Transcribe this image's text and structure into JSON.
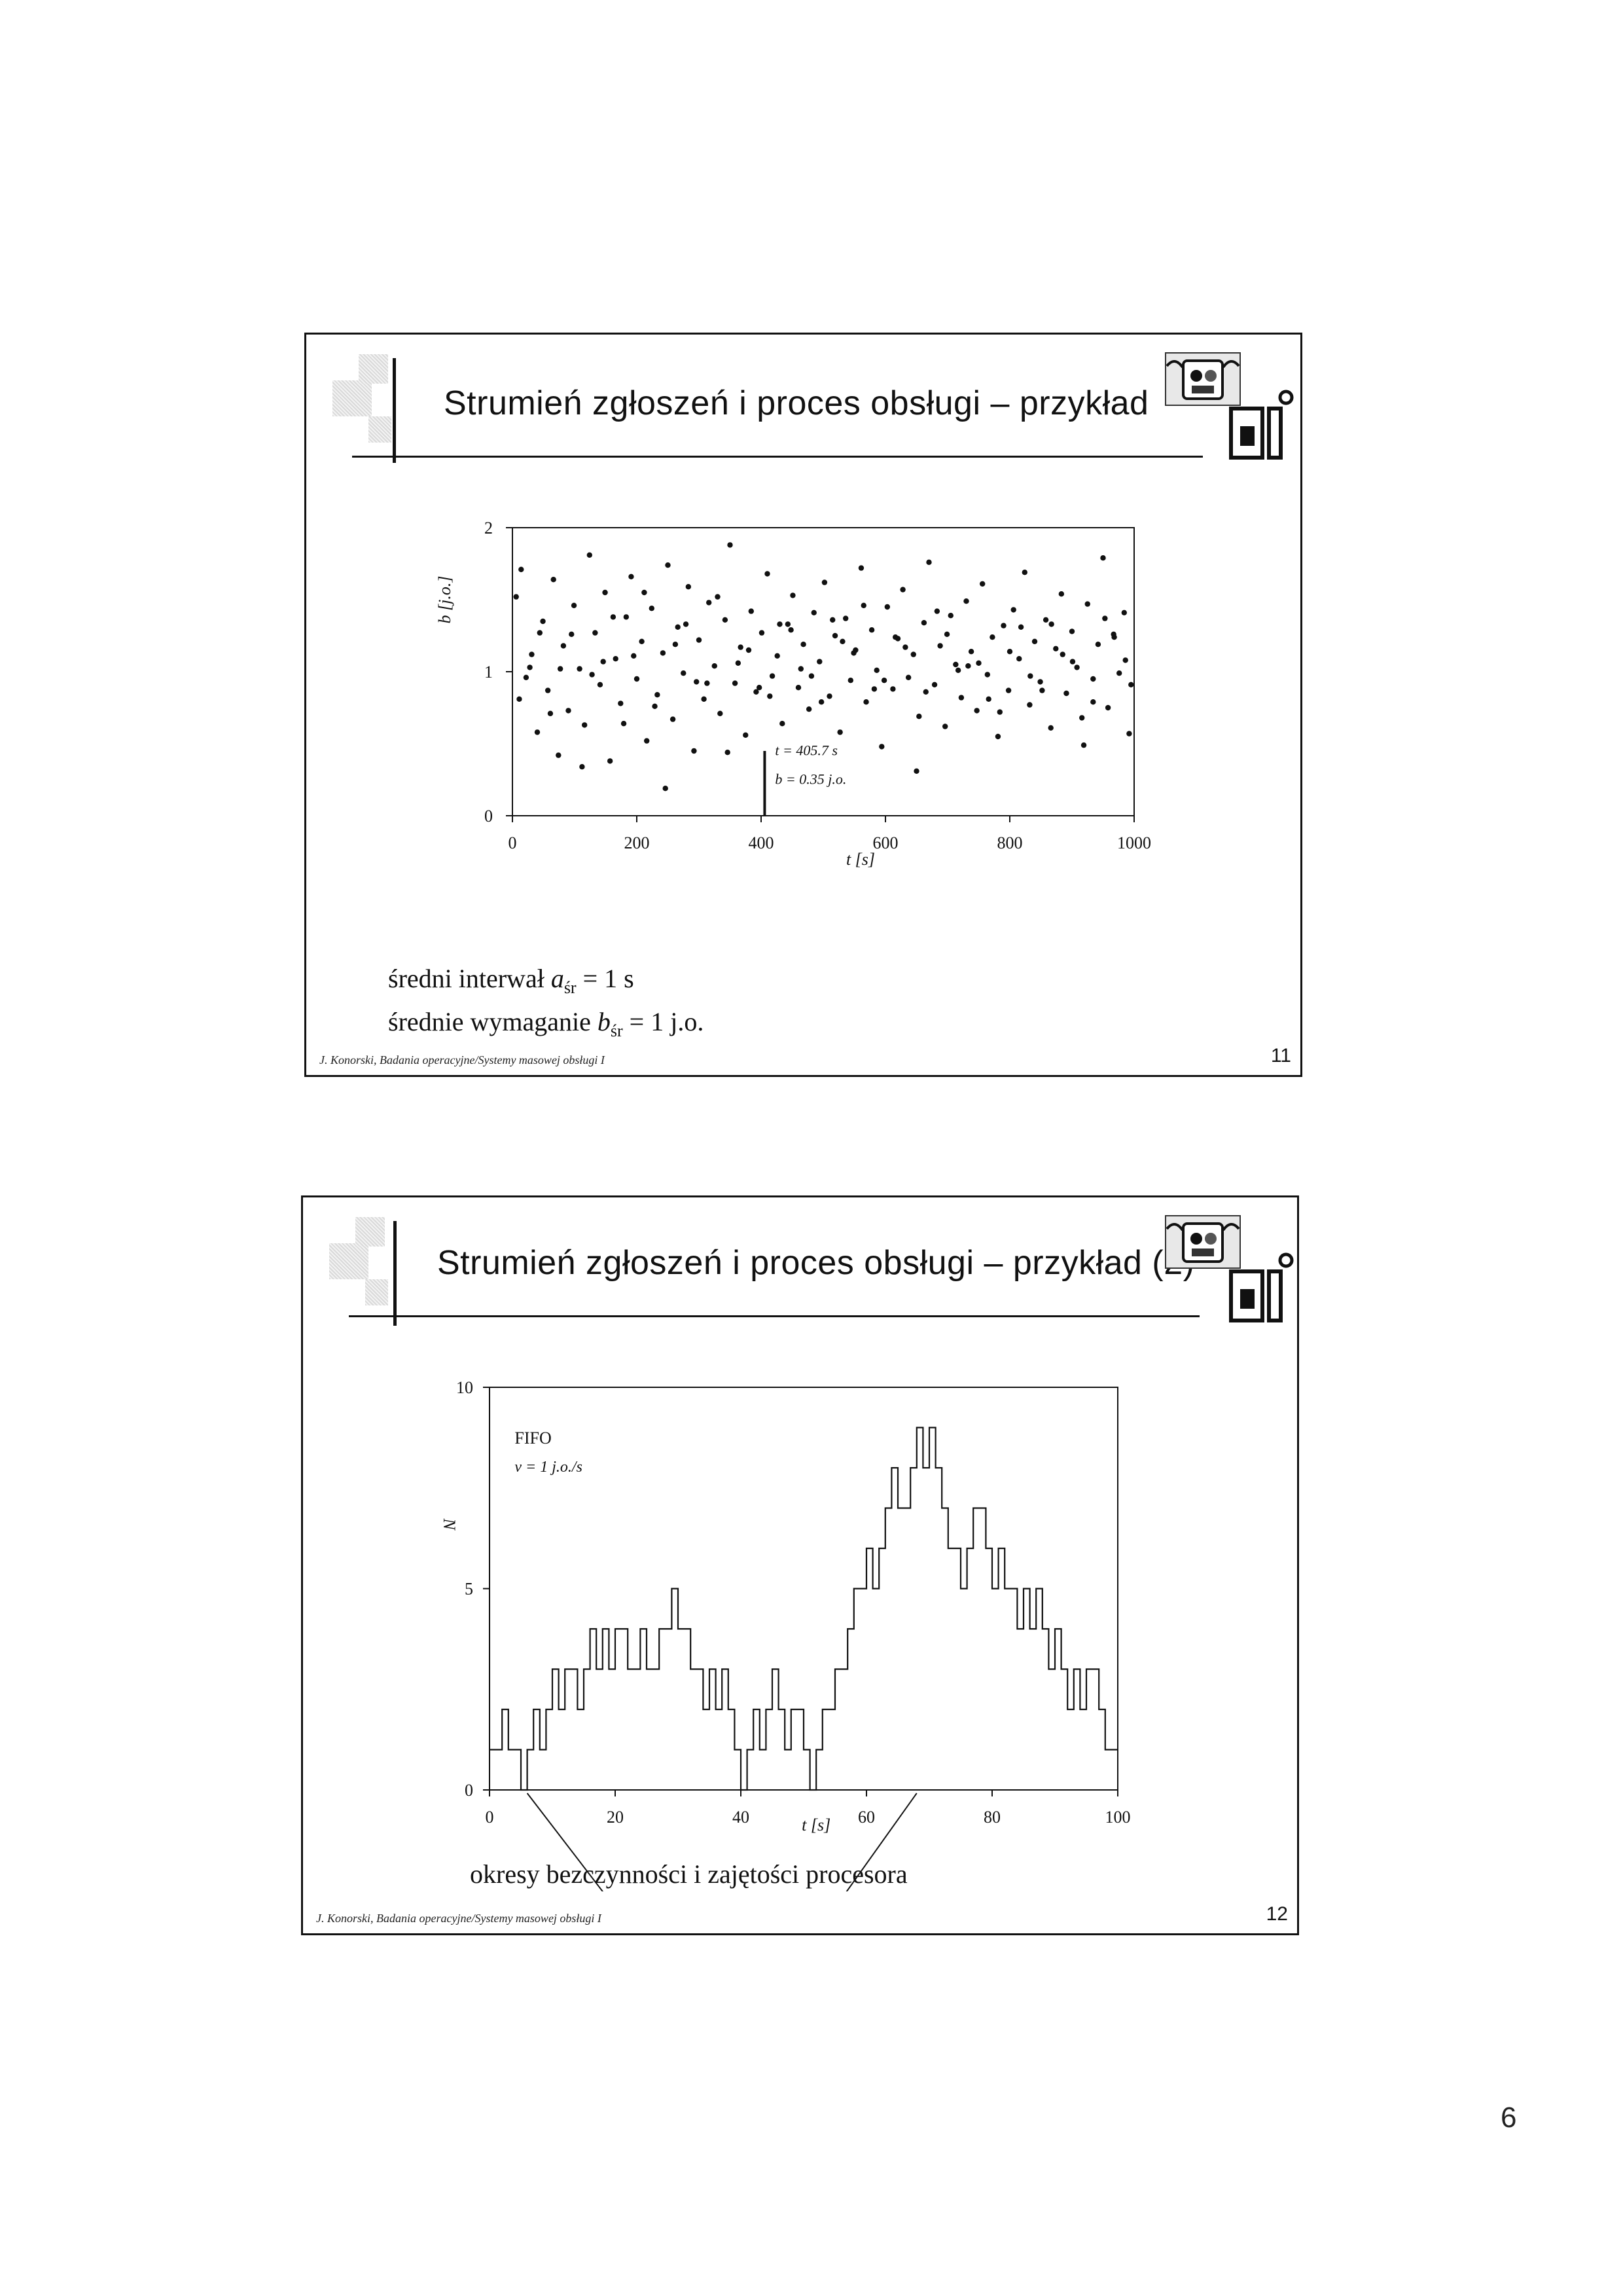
{
  "page": {
    "number": "6"
  },
  "slides": [
    {
      "title": "Strumień zgłoszeń i proces obsługi – przykład",
      "footer": "J. Konorski, Badania operacyjne/Systemy masowej obsługi I",
      "number": "11",
      "notes": {
        "line1_prefix": "średni interwał ",
        "line1_sym": "a",
        "line1_sub": "śr",
        "line1_suffix": " = 1 s",
        "line2_prefix": "średnie wymaganie ",
        "line2_sym": "b",
        "line2_sub": "śr",
        "line2_suffix": " = 1 j.o."
      },
      "annotation": {
        "line1": "t = 405.7 s",
        "line2": "b = 0.35 j.o."
      }
    },
    {
      "title": "Strumień zgłoszeń i proces obsługi – przykład (2)",
      "footer": "J. Konorski, Badania operacyjne/Systemy masowej obsługi I",
      "number": "12",
      "legend": {
        "line1": "FIFO",
        "line2": "v = 1 j.o./s"
      },
      "caption": "okresy bezczynności i zajętości procesora"
    }
  ],
  "chart_data": [
    {
      "type": "scatter",
      "xlabel": "t [s]",
      "ylabel": "b [j.o.]",
      "xlim": [
        0,
        1000
      ],
      "ylim": [
        0,
        2
      ],
      "xticks": [
        "0",
        "200",
        "400",
        "600",
        "800",
        "1000"
      ],
      "yticks": [
        "0",
        "1",
        "2"
      ],
      "marker_x": 405.7,
      "points": [
        [
          6,
          1.52
        ],
        [
          14,
          1.71
        ],
        [
          22,
          0.96
        ],
        [
          31,
          1.12
        ],
        [
          40,
          0.58
        ],
        [
          49,
          1.35
        ],
        [
          57,
          0.87
        ],
        [
          66,
          1.64
        ],
        [
          74,
          0.42
        ],
        [
          82,
          1.18
        ],
        [
          90,
          0.73
        ],
        [
          99,
          1.46
        ],
        [
          108,
          1.02
        ],
        [
          116,
          0.63
        ],
        [
          124,
          1.81
        ],
        [
          133,
          1.27
        ],
        [
          141,
          0.91
        ],
        [
          149,
          1.55
        ],
        [
          157,
          0.38
        ],
        [
          166,
          1.09
        ],
        [
          174,
          0.78
        ],
        [
          183,
          1.38
        ],
        [
          191,
          1.66
        ],
        [
          200,
          0.95
        ],
        [
          208,
          1.21
        ],
        [
          216,
          0.52
        ],
        [
          224,
          1.44
        ],
        [
          233,
          0.84
        ],
        [
          242,
          1.13
        ],
        [
          250,
          1.74
        ],
        [
          258,
          0.67
        ],
        [
          266,
          1.31
        ],
        [
          275,
          0.99
        ],
        [
          283,
          1.59
        ],
        [
          292,
          0.45
        ],
        [
          300,
          1.22
        ],
        [
          308,
          0.81
        ],
        [
          316,
          1.48
        ],
        [
          325,
          1.04
        ],
        [
          334,
          0.71
        ],
        [
          342,
          1.36
        ],
        [
          350,
          1.88
        ],
        [
          358,
          0.92
        ],
        [
          367,
          1.17
        ],
        [
          375,
          0.56
        ],
        [
          384,
          1.42
        ],
        [
          392,
          0.86
        ],
        [
          401,
          1.27
        ],
        [
          410,
          1.68
        ],
        [
          418,
          0.97
        ],
        [
          426,
          1.11
        ],
        [
          434,
          0.64
        ],
        [
          443,
          1.33
        ],
        [
          451,
          1.53
        ],
        [
          460,
          0.89
        ],
        [
          468,
          1.19
        ],
        [
          477,
          0.74
        ],
        [
          485,
          1.41
        ],
        [
          494,
          1.07
        ],
        [
          502,
          1.62
        ],
        [
          510,
          0.83
        ],
        [
          519,
          1.25
        ],
        [
          527,
          0.58
        ],
        [
          536,
          1.37
        ],
        [
          544,
          0.94
        ],
        [
          552,
          1.15
        ],
        [
          561,
          1.72
        ],
        [
          569,
          0.79
        ],
        [
          578,
          1.29
        ],
        [
          586,
          1.01
        ],
        [
          594,
          0.48
        ],
        [
          603,
          1.45
        ],
        [
          612,
          0.88
        ],
        [
          620,
          1.23
        ],
        [
          628,
          1.57
        ],
        [
          637,
          0.96
        ],
        [
          645,
          1.12
        ],
        [
          654,
          0.69
        ],
        [
          662,
          1.34
        ],
        [
          670,
          1.76
        ],
        [
          679,
          0.91
        ],
        [
          688,
          1.18
        ],
        [
          696,
          0.62
        ],
        [
          705,
          1.39
        ],
        [
          713,
          1.05
        ],
        [
          722,
          0.82
        ],
        [
          730,
          1.49
        ],
        [
          738,
          1.14
        ],
        [
          747,
          0.73
        ],
        [
          756,
          1.61
        ],
        [
          764,
          0.98
        ],
        [
          772,
          1.24
        ],
        [
          781,
          0.55
        ],
        [
          790,
          1.32
        ],
        [
          798,
          0.87
        ],
        [
          806,
          1.43
        ],
        [
          815,
          1.09
        ],
        [
          824,
          1.69
        ],
        [
          832,
          0.77
        ],
        [
          840,
          1.21
        ],
        [
          849,
          0.93
        ],
        [
          858,
          1.36
        ],
        [
          866,
          0.61
        ],
        [
          874,
          1.16
        ],
        [
          883,
          1.54
        ],
        [
          891,
          0.85
        ],
        [
          900,
          1.28
        ],
        [
          908,
          1.03
        ],
        [
          916,
          0.68
        ],
        [
          925,
          1.47
        ],
        [
          934,
          0.95
        ],
        [
          942,
          1.19
        ],
        [
          950,
          1.79
        ],
        [
          958,
          0.75
        ],
        [
          967,
          1.26
        ],
        [
          976,
          0.99
        ],
        [
          984,
          1.41
        ],
        [
          992,
          0.57
        ],
        [
          11,
          0.81
        ],
        [
          44,
          1.27
        ],
        [
          77,
          1.02
        ],
        [
          112,
          0.34
        ],
        [
          146,
          1.07
        ],
        [
          179,
          0.64
        ],
        [
          212,
          1.55
        ],
        [
          246,
          0.19
        ],
        [
          279,
          1.33
        ],
        [
          313,
          0.92
        ],
        [
          346,
          0.44
        ],
        [
          380,
          1.15
        ],
        [
          414,
          0.83
        ],
        [
          448,
          1.29
        ],
        [
          481,
          0.97
        ],
        [
          515,
          1.36
        ],
        [
          549,
          1.13
        ],
        [
          582,
          0.88
        ],
        [
          616,
          1.24
        ],
        [
          650,
          0.31
        ],
        [
          683,
          1.42
        ],
        [
          717,
          1.01
        ],
        [
          750,
          1.06
        ],
        [
          784,
          0.72
        ],
        [
          818,
          1.31
        ],
        [
          852,
          0.87
        ],
        [
          885,
          1.12
        ],
        [
          919,
          0.49
        ],
        [
          953,
          1.37
        ],
        [
          986,
          1.08
        ],
        [
          28,
          1.03
        ],
        [
          61,
          0.71
        ],
        [
          95,
          1.26
        ],
        [
          128,
          0.98
        ],
        [
          162,
          1.38
        ],
        [
          195,
          1.11
        ],
        [
          229,
          0.76
        ],
        [
          262,
          1.19
        ],
        [
          296,
          0.93
        ],
        [
          330,
          1.52
        ],
        [
          363,
          1.06
        ],
        [
          397,
          0.89
        ],
        [
          430,
          1.33
        ],
        [
          464,
          1.02
        ],
        [
          497,
          0.79
        ],
        [
          531,
          1.21
        ],
        [
          565,
          1.46
        ],
        [
          598,
          0.94
        ],
        [
          632,
          1.17
        ],
        [
          665,
          0.86
        ],
        [
          699,
          1.26
        ],
        [
          733,
          1.04
        ],
        [
          766,
          0.81
        ],
        [
          800,
          1.14
        ],
        [
          833,
          0.97
        ],
        [
          867,
          1.33
        ],
        [
          901,
          1.07
        ],
        [
          934,
          0.79
        ],
        [
          968,
          1.24
        ],
        [
          995,
          0.91
        ]
      ]
    },
    {
      "type": "line",
      "xlabel": "t [s]",
      "ylabel": "N",
      "xlim": [
        0,
        100
      ],
      "ylim": [
        0,
        10
      ],
      "xticks": [
        "0",
        "20",
        "40",
        "60",
        "80",
        "100"
      ],
      "yticks": [
        "0",
        "5",
        "10"
      ],
      "x": [
        0,
        2,
        2,
        3,
        3,
        5,
        5,
        6,
        6,
        7,
        7,
        8,
        8,
        9,
        9,
        10,
        10,
        11,
        11,
        12,
        12,
        14,
        14,
        15,
        15,
        16,
        16,
        17,
        17,
        18,
        18,
        19,
        19,
        20,
        20,
        22,
        22,
        24,
        24,
        25,
        25,
        27,
        27,
        29,
        29,
        30,
        30,
        32,
        32,
        34,
        34,
        35,
        35,
        36,
        36,
        37,
        37,
        38,
        38,
        39,
        39,
        40,
        40,
        41,
        41,
        42,
        42,
        43,
        43,
        44,
        44,
        45,
        45,
        46,
        46,
        47,
        47,
        48,
        48,
        50,
        50,
        51,
        51,
        52,
        52,
        53,
        53,
        55,
        55,
        57,
        57,
        58,
        58,
        60,
        60,
        61,
        61,
        62,
        62,
        63,
        63,
        64,
        64,
        65,
        65,
        67,
        67,
        68,
        68,
        69,
        69,
        70,
        70,
        71,
        71,
        72,
        72,
        73,
        73,
        75,
        75,
        76,
        76,
        77,
        77,
        79,
        79,
        80,
        80,
        81,
        81,
        82,
        82,
        84,
        84,
        85,
        85,
        86,
        86,
        87,
        87,
        88,
        88,
        89,
        89,
        90,
        90,
        91,
        91,
        92,
        92,
        93,
        93,
        94,
        94,
        95,
        95,
        97,
        97,
        98,
        98,
        100
      ],
      "y": [
        1,
        1,
        2,
        2,
        1,
        1,
        0,
        0,
        1,
        1,
        2,
        2,
        1,
        1,
        2,
        2,
        3,
        3,
        2,
        2,
        3,
        3,
        2,
        2,
        3,
        3,
        4,
        4,
        3,
        3,
        4,
        4,
        3,
        3,
        4,
        4,
        3,
        3,
        4,
        4,
        3,
        3,
        4,
        4,
        5,
        5,
        4,
        4,
        3,
        3,
        2,
        2,
        3,
        3,
        2,
        2,
        3,
        3,
        2,
        2,
        1,
        1,
        0,
        0,
        1,
        1,
        2,
        2,
        1,
        1,
        2,
        2,
        3,
        3,
        2,
        2,
        1,
        1,
        2,
        2,
        1,
        1,
        0,
        0,
        1,
        1,
        2,
        2,
        3,
        3,
        4,
        4,
        5,
        5,
        6,
        6,
        5,
        5,
        6,
        6,
        7,
        7,
        8,
        8,
        7,
        7,
        8,
        8,
        9,
        9,
        8,
        8,
        9,
        9,
        8,
        8,
        7,
        7,
        6,
        6,
        5,
        5,
        6,
        6,
        7,
        7,
        6,
        6,
        5,
        5,
        6,
        6,
        5,
        5,
        4,
        4,
        5,
        5,
        4,
        4,
        5,
        5,
        4,
        4,
        3,
        3,
        4,
        4,
        3,
        3,
        2,
        2,
        3,
        3,
        2,
        2,
        3,
        3,
        2,
        2,
        1,
        1
      ]
    }
  ]
}
